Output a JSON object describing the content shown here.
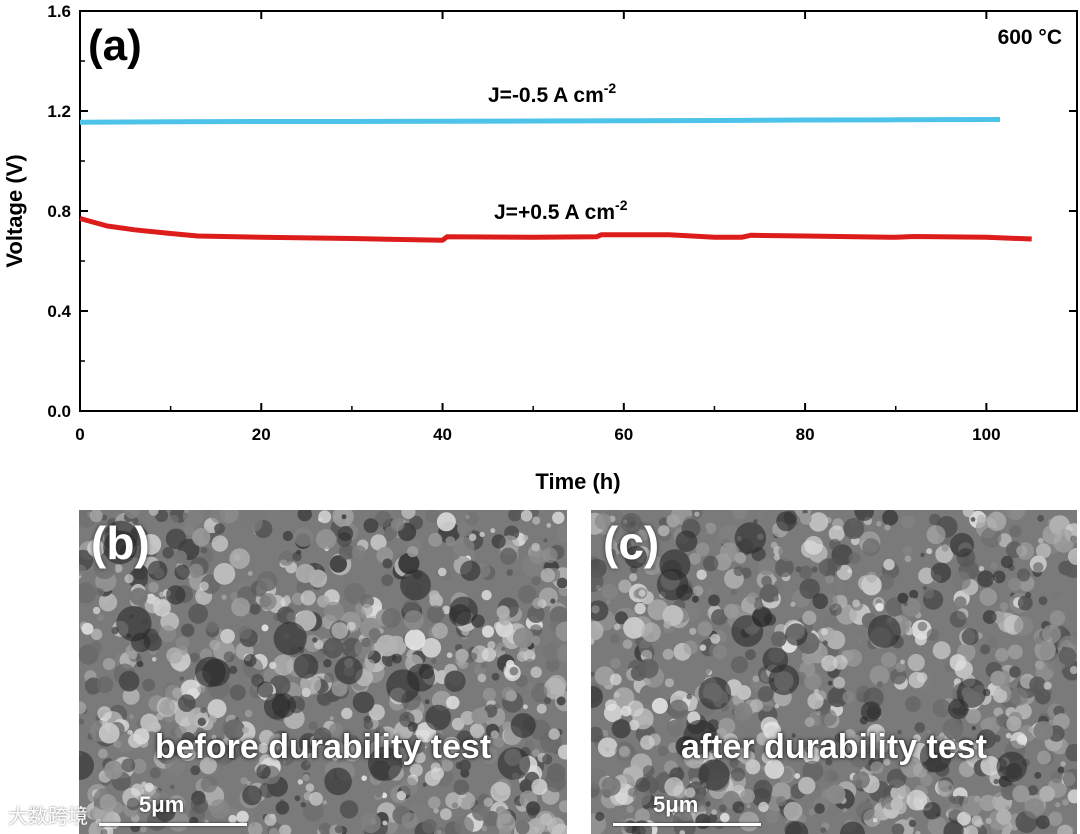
{
  "chart_data": {
    "type": "line",
    "panel_label": "(a)",
    "annotation": "600 °C",
    "xlabel": "Time (h)",
    "ylabel": "Voltage (V)",
    "xlim": [
      0,
      110
    ],
    "ylim": [
      0.0,
      1.6
    ],
    "xticks": [
      0,
      20,
      40,
      60,
      80,
      100
    ],
    "yticks": [
      0.0,
      0.4,
      0.8,
      1.2,
      1.6
    ],
    "xtick_labels": [
      "0",
      "20",
      "40",
      "60",
      "80",
      "100"
    ],
    "ytick_labels": [
      "0.0",
      "0.4",
      "0.8",
      "1.2",
      "1.6"
    ],
    "series": [
      {
        "name": "J=-0.5 A cm-2",
        "label_main": "J=-0.5 A cm",
        "label_sup": "-2",
        "color": "#4dc3ea",
        "x": [
          0,
          10,
          20,
          30,
          40,
          50,
          60,
          70,
          80,
          90,
          101.5
        ],
        "y": [
          1.155,
          1.157,
          1.158,
          1.158,
          1.159,
          1.16,
          1.161,
          1.162,
          1.164,
          1.165,
          1.166
        ]
      },
      {
        "name": "J=+0.5 A cm-2",
        "label_main": "J=+0.5 A cm",
        "label_sup": "-2",
        "color": "#dd1c1c",
        "x": [
          0,
          3,
          6,
          10,
          13,
          20,
          30,
          40,
          40.5,
          50,
          57,
          57.5,
          65,
          70,
          73,
          74,
          80,
          90,
          92,
          100,
          105
        ],
        "y": [
          0.77,
          0.74,
          0.725,
          0.71,
          0.7,
          0.695,
          0.69,
          0.683,
          0.697,
          0.695,
          0.697,
          0.705,
          0.705,
          0.695,
          0.695,
          0.703,
          0.7,
          0.695,
          0.698,
          0.695,
          0.688
        ]
      }
    ]
  },
  "panels": [
    {
      "label": "(b)",
      "caption": "before durability test",
      "scale": "5μm"
    },
    {
      "label": "(c)",
      "caption": "after durability test",
      "scale": "5μm"
    }
  ],
  "watermark": "大数跨境"
}
